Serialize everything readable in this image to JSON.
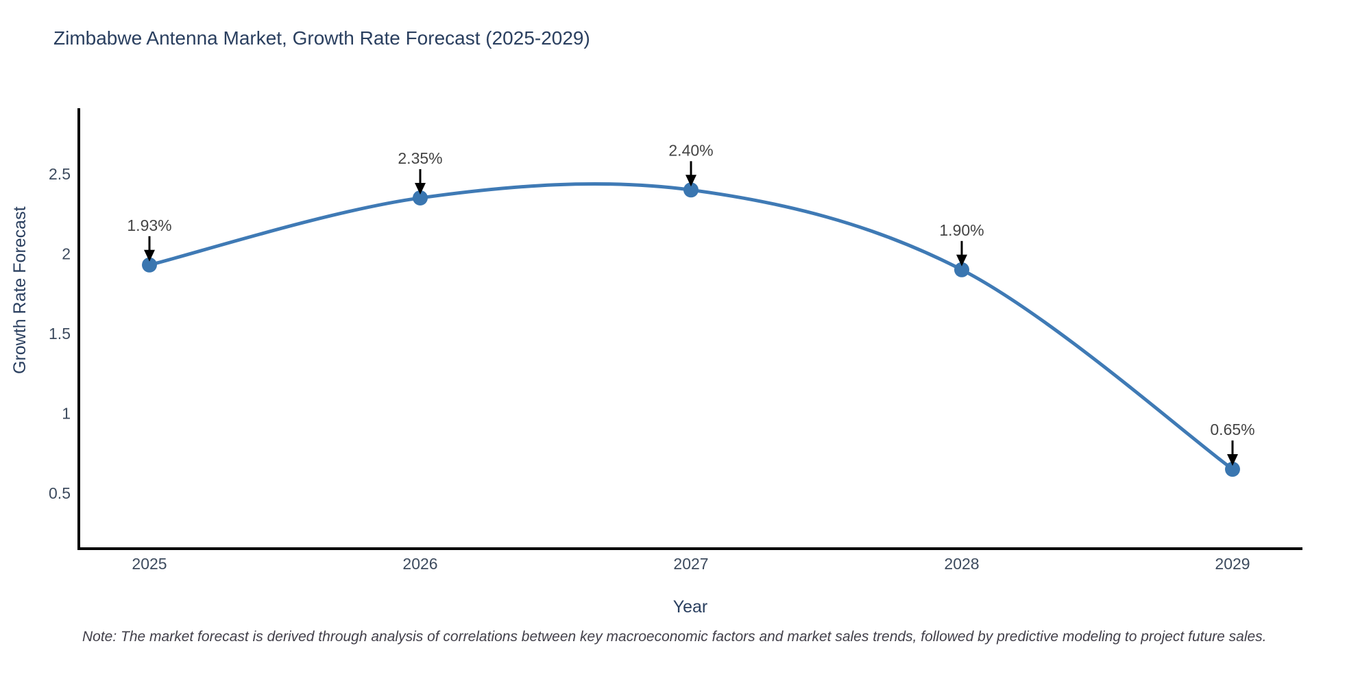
{
  "title": "Zimbabwe Antenna Market, Growth Rate Forecast (2025-2029)",
  "note": "Note: The market forecast is derived through analysis of correlations between key macroeconomic factors and market sales trends, followed by predictive modeling to project future sales.",
  "chart_data": {
    "type": "line",
    "line_shape": "spline",
    "title": "Zimbabwe Antenna Market, Growth Rate Forecast (2025-2029)",
    "xlabel": "Year",
    "ylabel": "Growth Rate Forecast",
    "x": [
      2025,
      2026,
      2027,
      2028,
      2029
    ],
    "values": [
      1.93,
      2.35,
      2.4,
      1.9,
      0.65
    ],
    "point_labels": [
      "1.93%",
      "2.35%",
      "2.40%",
      "1.90%",
      "0.65%"
    ],
    "xtick_labels": [
      "2025",
      "2026",
      "2027",
      "2028",
      "2029"
    ],
    "ytick_values": [
      0.5,
      1,
      1.5,
      2,
      2.5
    ],
    "ytick_labels": [
      "0.5",
      "1",
      "1.5",
      "2",
      "2.5"
    ],
    "grid": false,
    "legend": false,
    "colors": {
      "line": "#3f7ab5",
      "marker": "#3a76b0",
      "axis_line": "#000000",
      "tick_text": "#3d4b5e",
      "annotation_text": "#444444",
      "annotation_arrow": "#000000",
      "title_text": "#2a3f5f"
    }
  }
}
